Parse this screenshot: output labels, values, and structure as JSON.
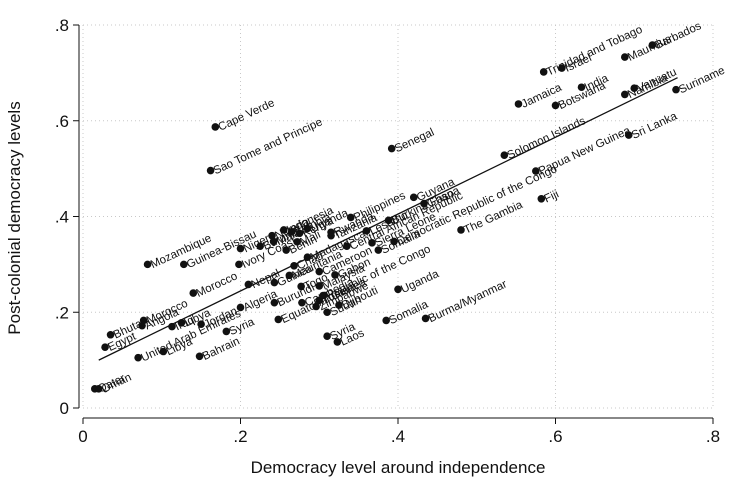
{
  "chart_data": {
    "type": "scatter",
    "xlabel": "Democracy level around independence",
    "ylabel": "Post-colonial democracy levels",
    "xlim": [
      0,
      0.8
    ],
    "ylim": [
      0,
      0.8
    ],
    "x_ticks": [
      {
        "value": 0,
        "label": "0"
      },
      {
        "value": 0.2,
        "label": ".2"
      },
      {
        "value": 0.4,
        "label": ".4"
      },
      {
        "value": 0.6,
        "label": ".6"
      },
      {
        "value": 0.8,
        "label": ".8"
      }
    ],
    "y_ticks": [
      {
        "value": 0,
        "label": "0"
      },
      {
        "value": 0.2,
        "label": ".2"
      },
      {
        "value": 0.4,
        "label": ".4"
      },
      {
        "value": 0.6,
        "label": ".6"
      },
      {
        "value": 0.8,
        "label": ".8"
      }
    ],
    "grid": "dotted",
    "fit_line": {
      "x": [
        0.02,
        0.755
      ],
      "y": [
        0.1,
        0.69
      ]
    },
    "points": [
      {
        "x": 0.168,
        "y": 0.587,
        "label": "Cape Verde"
      },
      {
        "x": 0.162,
        "y": 0.496,
        "label": "Sao Tome and Principe"
      },
      {
        "x": 0.392,
        "y": 0.542,
        "label": "Senegal"
      },
      {
        "x": 0.585,
        "y": 0.702,
        "label": "Trinidad and Tobago"
      },
      {
        "x": 0.608,
        "y": 0.71,
        "label": "Israel"
      },
      {
        "x": 0.688,
        "y": 0.733,
        "label": "Mauritius"
      },
      {
        "x": 0.723,
        "y": 0.758,
        "label": "Barbados"
      },
      {
        "x": 0.553,
        "y": 0.635,
        "label": "Jamaica"
      },
      {
        "x": 0.633,
        "y": 0.67,
        "label": "India"
      },
      {
        "x": 0.6,
        "y": 0.632,
        "label": "Botswana"
      },
      {
        "x": 0.688,
        "y": 0.655,
        "label": "Namibia"
      },
      {
        "x": 0.7,
        "y": 0.668,
        "label": "Vanuatu"
      },
      {
        "x": 0.753,
        "y": 0.665,
        "label": "Suriname"
      },
      {
        "x": 0.535,
        "y": 0.528,
        "label": "Solomon Islands"
      },
      {
        "x": 0.575,
        "y": 0.495,
        "label": "Papua New Guinea"
      },
      {
        "x": 0.693,
        "y": 0.57,
        "label": "Sri Lanka"
      },
      {
        "x": 0.582,
        "y": 0.437,
        "label": "Fiji"
      },
      {
        "x": 0.48,
        "y": 0.372,
        "label": "The Gambia"
      },
      {
        "x": 0.433,
        "y": 0.427,
        "label": "Ghana"
      },
      {
        "x": 0.42,
        "y": 0.44,
        "label": "Guyana"
      },
      {
        "x": 0.34,
        "y": 0.398,
        "label": "Philippines"
      },
      {
        "x": 0.388,
        "y": 0.392,
        "label": "Burkina Faso"
      },
      {
        "x": 0.395,
        "y": 0.348,
        "label": "Democratic Republic of the Congo"
      },
      {
        "x": 0.36,
        "y": 0.37,
        "label": "Lesotho"
      },
      {
        "x": 0.335,
        "y": 0.338,
        "label": "Central African Republic"
      },
      {
        "x": 0.367,
        "y": 0.345,
        "label": "Sierra Leone"
      },
      {
        "x": 0.315,
        "y": 0.36,
        "label": "Tanzania"
      },
      {
        "x": 0.275,
        "y": 0.365,
        "label": "Kenya"
      },
      {
        "x": 0.255,
        "y": 0.372,
        "label": "Indonesia"
      },
      {
        "x": 0.24,
        "y": 0.36,
        "label": "Nigeria"
      },
      {
        "x": 0.265,
        "y": 0.368,
        "label": "Zambia"
      },
      {
        "x": 0.285,
        "y": 0.375,
        "label": "Uganda"
      },
      {
        "x": 0.315,
        "y": 0.367,
        "label": "Rwanda"
      },
      {
        "x": 0.225,
        "y": 0.338,
        "label": "Burundi"
      },
      {
        "x": 0.242,
        "y": 0.348,
        "label": "Malawi"
      },
      {
        "x": 0.258,
        "y": 0.33,
        "label": "Benin"
      },
      {
        "x": 0.272,
        "y": 0.347,
        "label": "Mali"
      },
      {
        "x": 0.082,
        "y": 0.3,
        "label": "Mozambique"
      },
      {
        "x": 0.128,
        "y": 0.3,
        "label": "Guinea-Bissau"
      },
      {
        "x": 0.2,
        "y": 0.333,
        "label": "Niger"
      },
      {
        "x": 0.198,
        "y": 0.3,
        "label": "Ivory Coast"
      },
      {
        "x": 0.21,
        "y": 0.258,
        "label": "Nepal"
      },
      {
        "x": 0.243,
        "y": 0.262,
        "label": "Guinea"
      },
      {
        "x": 0.262,
        "y": 0.277,
        "label": "Mauritania"
      },
      {
        "x": 0.277,
        "y": 0.254,
        "label": "Togo"
      },
      {
        "x": 0.3,
        "y": 0.255,
        "label": "Malaysia"
      },
      {
        "x": 0.268,
        "y": 0.297,
        "label": "Chad"
      },
      {
        "x": 0.285,
        "y": 0.315,
        "label": "Madagascar"
      },
      {
        "x": 0.32,
        "y": 0.278,
        "label": "Gabon"
      },
      {
        "x": 0.375,
        "y": 0.33,
        "label": "Somalia"
      },
      {
        "x": 0.3,
        "y": 0.285,
        "label": "Cameroon"
      },
      {
        "x": 0.3,
        "y": 0.225,
        "label": "Tunisia"
      },
      {
        "x": 0.31,
        "y": 0.2,
        "label": "Sudan"
      },
      {
        "x": 0.296,
        "y": 0.212,
        "label": "Zimbabwe"
      },
      {
        "x": 0.278,
        "y": 0.22,
        "label": "Cambodia"
      },
      {
        "x": 0.305,
        "y": 0.235,
        "label": "Republic of the Congo"
      },
      {
        "x": 0.325,
        "y": 0.215,
        "label": "Djibouti"
      },
      {
        "x": 0.243,
        "y": 0.22,
        "label": "Burundi"
      },
      {
        "x": 0.248,
        "y": 0.185,
        "label": "Equatorial Guinea"
      },
      {
        "x": 0.2,
        "y": 0.21,
        "label": "Algeria"
      },
      {
        "x": 0.14,
        "y": 0.24,
        "label": "Morocco"
      },
      {
        "x": 0.15,
        "y": 0.175,
        "label": "Jordan"
      },
      {
        "x": 0.113,
        "y": 0.17,
        "label": "Iraq"
      },
      {
        "x": 0.182,
        "y": 0.16,
        "label": "Syria"
      },
      {
        "x": 0.148,
        "y": 0.108,
        "label": "Bahrain"
      },
      {
        "x": 0.31,
        "y": 0.15,
        "label": "Syria"
      },
      {
        "x": 0.323,
        "y": 0.138,
        "label": "Laos"
      },
      {
        "x": 0.385,
        "y": 0.183,
        "label": "Somalia"
      },
      {
        "x": 0.4,
        "y": 0.248,
        "label": "Uganda"
      },
      {
        "x": 0.435,
        "y": 0.187,
        "label": "Burma/Myanmar"
      },
      {
        "x": 0.077,
        "y": 0.183,
        "label": "Morocco"
      },
      {
        "x": 0.075,
        "y": 0.172,
        "label": "Angola"
      },
      {
        "x": 0.035,
        "y": 0.153,
        "label": "Bhutan"
      },
      {
        "x": 0.028,
        "y": 0.127,
        "label": "Egypt"
      },
      {
        "x": 0.125,
        "y": 0.178,
        "label": "Libya"
      },
      {
        "x": 0.07,
        "y": 0.105,
        "label": "United Arab Emirates"
      },
      {
        "x": 0.102,
        "y": 0.118,
        "label": "Libya"
      },
      {
        "x": 0.015,
        "y": 0.04,
        "label": "Qatar"
      },
      {
        "x": 0.02,
        "y": 0.04,
        "label": "Oman"
      }
    ]
  }
}
